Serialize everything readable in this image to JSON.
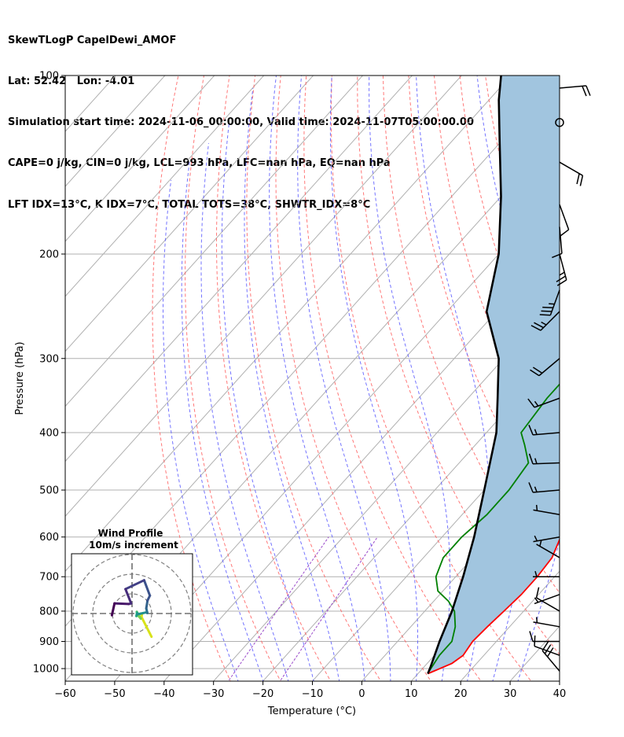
{
  "header": {
    "line1": "SkewTLogP CapelDewi_AMOF",
    "line2": "Lat: 52.42   Lon: -4.01",
    "line3": "Simulation start time: 2024-11-06_00:00:00, Valid time: 2024-11-07T05:00:00.00",
    "line4": "CAPE=0 j/kg, CIN=0 j/kg, LCL=993 hPa, LFC=nan hPa, EQ=nan hPa",
    "line5": "LFT IDX=13°C, K IDX=7°C, TOTAL TOTS=38°C, SHWTR_IDX=8°C"
  },
  "chart_data": {
    "type": "line",
    "subtype": "skew-T log-P",
    "xlabel": "Temperature (°C)",
    "ylabel": "Pressure (hPa)",
    "xlim": [
      -60,
      40
    ],
    "ylim": [
      1050,
      100
    ],
    "y_scale": "log",
    "grid": true,
    "x_ticks": [
      "−60",
      "−50",
      "−40",
      "−30",
      "−20",
      "−10",
      "0",
      "10",
      "20",
      "30",
      "40"
    ],
    "y_ticks": [
      "100",
      "200",
      "300",
      "400",
      "500",
      "600",
      "700",
      "800",
      "900",
      "1000"
    ],
    "colors": {
      "temperature": "#ff0000",
      "dewpoint": "#008000",
      "parcel": "#000000",
      "fill": "#a1c5df",
      "dry_adiabat": "#ff6060",
      "moist_adiabat": "#5a5aff",
      "mixing_ratio": "#9a4aca",
      "isotherm": "#b0b0b0"
    },
    "series": [
      {
        "key": "temperature",
        "points": [
          [
            12,
            1020
          ],
          [
            15,
            980
          ],
          [
            15.8,
            950
          ],
          [
            15.2,
            900
          ],
          [
            15.5,
            850
          ],
          [
            16,
            800
          ],
          [
            16.5,
            750
          ],
          [
            16.5,
            700
          ],
          [
            16,
            650
          ],
          [
            14,
            600
          ],
          [
            12,
            550
          ],
          [
            10,
            500
          ],
          [
            7,
            450
          ],
          [
            4,
            400
          ],
          [
            1,
            350
          ],
          [
            -2,
            300
          ],
          [
            -4,
            270
          ],
          [
            -5,
            250
          ],
          [
            -6,
            230
          ],
          [
            -7.5,
            210
          ],
          [
            -8,
            200
          ],
          [
            -8.5,
            190
          ],
          [
            -8,
            180
          ],
          [
            -4,
            160
          ],
          [
            -1,
            140
          ],
          [
            2,
            130
          ],
          [
            4,
            120
          ],
          [
            5,
            110
          ],
          [
            5.5,
            100
          ]
        ]
      },
      {
        "key": "dewpoint",
        "points": [
          [
            11.8,
            1010
          ],
          [
            11,
            950
          ],
          [
            11,
            900
          ],
          [
            9,
            850
          ],
          [
            6,
            800
          ],
          [
            3,
            770
          ],
          [
            -1,
            740
          ],
          [
            -4,
            700
          ],
          [
            -6,
            650
          ],
          [
            -6,
            600
          ],
          [
            -5,
            550
          ],
          [
            -5,
            500
          ],
          [
            -6,
            450
          ],
          [
            -10,
            420
          ],
          [
            -13,
            400
          ],
          [
            -14,
            350
          ],
          [
            -14,
            300
          ],
          [
            -17,
            270
          ],
          [
            -16,
            240
          ],
          [
            -14,
            210
          ],
          [
            -12,
            190
          ],
          [
            -11,
            180
          ],
          [
            -9,
            165
          ],
          [
            -6,
            150
          ],
          [
            -7,
            140
          ],
          [
            -5,
            120
          ],
          [
            -1,
            110
          ],
          [
            0,
            105
          ],
          [
            1,
            100
          ]
        ]
      },
      {
        "key": "parcel",
        "points": [
          [
            12,
            1020
          ],
          [
            11.3,
            993
          ],
          [
            8.5,
            900
          ],
          [
            5.5,
            800
          ],
          [
            1.5,
            700
          ],
          [
            -3.5,
            600
          ],
          [
            -10,
            500
          ],
          [
            -18,
            400
          ],
          [
            -24,
            350
          ],
          [
            -31,
            300
          ],
          [
            -42,
            250
          ],
          [
            -50,
            200
          ],
          [
            -60,
            160
          ],
          [
            -70,
            130
          ],
          [
            -78,
            110
          ],
          [
            -82,
            100
          ]
        ]
      }
    ],
    "inset": {
      "title": "Wind Profile",
      "subtitle": "10m/s increment",
      "ring_spacing_ms": 10
    },
    "wind_barbs": [
      {
        "p": 1010,
        "speed_kt": 30,
        "dir": 320
      },
      {
        "p": 950,
        "speed_kt": 10,
        "dir": 290
      },
      {
        "p": 900,
        "speed_kt": 10,
        "dir": 270
      },
      {
        "p": 850,
        "speed_kt": 5,
        "dir": 280
      },
      {
        "p": 800,
        "speed_kt": 10,
        "dir": 300
      },
      {
        "p": 750,
        "speed_kt": 5,
        "dir": 250
      },
      {
        "p": 700,
        "speed_kt": 5,
        "dir": 270
      },
      {
        "p": 650,
        "speed_kt": 5,
        "dir": 300
      },
      {
        "p": 600,
        "speed_kt": 5,
        "dir": 260
      },
      {
        "p": 550,
        "speed_kt": 5,
        "dir": 280
      },
      {
        "p": 500,
        "speed_kt": 15,
        "dir": 265
      },
      {
        "p": 450,
        "speed_kt": 15,
        "dir": 268
      },
      {
        "p": 400,
        "speed_kt": 15,
        "dir": 265
      },
      {
        "p": 350,
        "speed_kt": 15,
        "dir": 250
      },
      {
        "p": 300,
        "speed_kt": 20,
        "dir": 230
      },
      {
        "p": 250,
        "speed_kt": 25,
        "dir": 225
      },
      {
        "p": 230,
        "speed_kt": 35,
        "dir": 200
      },
      {
        "p": 200,
        "speed_kt": 25,
        "dir": 165
      },
      {
        "p": 180,
        "speed_kt": 10,
        "dir": 175
      },
      {
        "p": 165,
        "speed_kt": 10,
        "dir": 160
      },
      {
        "p": 140,
        "speed_kt": 20,
        "dir": 120
      },
      {
        "p": 120,
        "speed_kt": 0,
        "dir": 0
      },
      {
        "p": 105,
        "speed_kt": 20,
        "dir": 85
      }
    ]
  }
}
